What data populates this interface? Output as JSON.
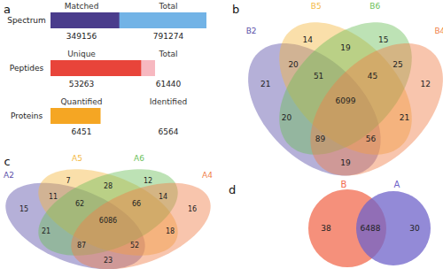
{
  "chart_data": [
    {
      "type": "bar",
      "title": "a",
      "orientation": "horizontal",
      "tick_labels": false,
      "rows": [
        {
          "category": "Spectrum",
          "xlim": [
            0,
            791274
          ],
          "series": [
            {
              "name": "Matched",
              "color": "#4a3c8c",
              "value": 349156
            },
            {
              "name": "Total",
              "color": "#72b3e6",
              "value": 791274
            }
          ]
        },
        {
          "category": "Peptides",
          "xlim": [
            0,
            61440
          ],
          "series": [
            {
              "name": "Unique",
              "color": "#e8443a",
              "value": 53263
            },
            {
              "name": "Total",
              "color": "#f7b8c0",
              "value": 61440
            }
          ]
        },
        {
          "category": "Proteins",
          "xlim": [
            0,
            6564
          ],
          "series": [
            {
              "name": "Quantified",
              "color": "#f5a623",
              "value": 6451
            },
            {
              "name": "Identified",
              "color": "#fbd38d",
              "value": 6564
            }
          ]
        }
      ]
    },
    {
      "type": "venn",
      "title": "b",
      "sets": [
        {
          "name": "B2",
          "color": "#5b4fa8"
        },
        {
          "name": "B5",
          "color": "#f4b942"
        },
        {
          "name": "B6",
          "color": "#6cbf5a"
        },
        {
          "name": "B4",
          "color": "#f07f4a"
        }
      ],
      "regions": [
        {
          "sets": [
            "B2"
          ],
          "value": 21
        },
        {
          "sets": [
            "B5"
          ],
          "value": 14
        },
        {
          "sets": [
            "B6"
          ],
          "value": 15
        },
        {
          "sets": [
            "B4"
          ],
          "value": 12
        },
        {
          "sets": [
            "B2",
            "B5"
          ],
          "value": 20
        },
        {
          "sets": [
            "B5",
            "B6"
          ],
          "value": 19
        },
        {
          "sets": [
            "B6",
            "B4"
          ],
          "value": 25
        },
        {
          "sets": [
            "B2",
            "B6"
          ],
          "value": 20
        },
        {
          "sets": [
            "B5",
            "B4"
          ],
          "value": 21
        },
        {
          "sets": [
            "B2",
            "B4"
          ],
          "value": 19
        },
        {
          "sets": [
            "B2",
            "B5",
            "B6"
          ],
          "value": 51
        },
        {
          "sets": [
            "B5",
            "B6",
            "B4"
          ],
          "value": 45
        },
        {
          "sets": [
            "B2",
            "B6",
            "B4"
          ],
          "value": 89
        },
        {
          "sets": [
            "B2",
            "B5",
            "B4"
          ],
          "value": 56
        },
        {
          "sets": [
            "B2",
            "B5",
            "B6",
            "B4"
          ],
          "value": 6099
        }
      ]
    },
    {
      "type": "venn",
      "title": "c",
      "sets": [
        {
          "name": "A2",
          "color": "#5b4fa8"
        },
        {
          "name": "A5",
          "color": "#f4b942"
        },
        {
          "name": "A6",
          "color": "#6cbf5a"
        },
        {
          "name": "A4",
          "color": "#f07f4a"
        }
      ],
      "regions": [
        {
          "sets": [
            "A2"
          ],
          "value": 15
        },
        {
          "sets": [
            "A5"
          ],
          "value": 7
        },
        {
          "sets": [
            "A6"
          ],
          "value": 12
        },
        {
          "sets": [
            "A4"
          ],
          "value": 16
        },
        {
          "sets": [
            "A2",
            "A5"
          ],
          "value": 11
        },
        {
          "sets": [
            "A5",
            "A6"
          ],
          "value": 28
        },
        {
          "sets": [
            "A6",
            "A4"
          ],
          "value": 14
        },
        {
          "sets": [
            "A2",
            "A6"
          ],
          "value": 21
        },
        {
          "sets": [
            "A5",
            "A4"
          ],
          "value": 18
        },
        {
          "sets": [
            "A2",
            "A4"
          ],
          "value": 23
        },
        {
          "sets": [
            "A2",
            "A5",
            "A6"
          ],
          "value": 62
        },
        {
          "sets": [
            "A5",
            "A6",
            "A4"
          ],
          "value": 66
        },
        {
          "sets": [
            "A2",
            "A6",
            "A4"
          ],
          "value": 87
        },
        {
          "sets": [
            "A2",
            "A5",
            "A4"
          ],
          "value": 52
        },
        {
          "sets": [
            "A2",
            "A5",
            "A6",
            "A4"
          ],
          "value": 6086
        }
      ]
    },
    {
      "type": "venn",
      "title": "d",
      "sets": [
        {
          "name": "B",
          "color": "#f26b4f"
        },
        {
          "name": "A",
          "color": "#6f63c9"
        }
      ],
      "regions": [
        {
          "sets": [
            "B"
          ],
          "value": 38
        },
        {
          "sets": [
            "B",
            "A"
          ],
          "value": 6488
        },
        {
          "sets": [
            "A"
          ],
          "value": 30
        }
      ]
    }
  ]
}
